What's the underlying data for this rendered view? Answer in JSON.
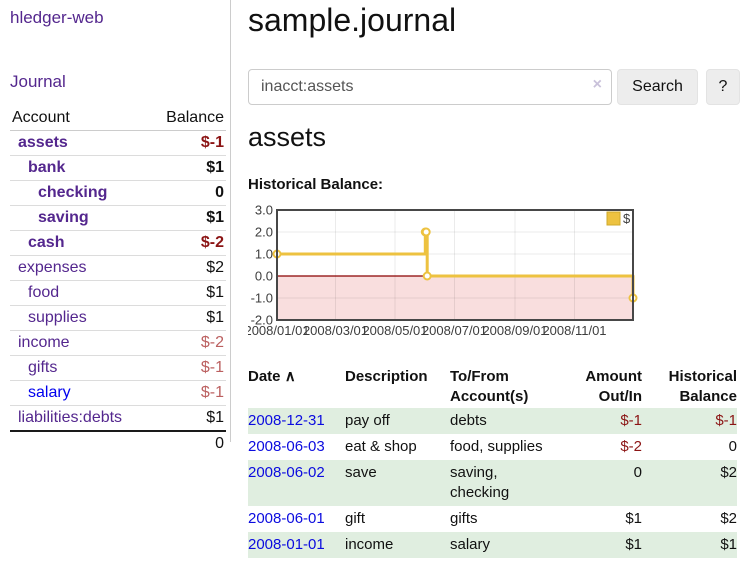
{
  "app": {
    "title": "hledger-web"
  },
  "sidebar": {
    "nav": {
      "journal": "Journal"
    },
    "accounts_table": {
      "headers": {
        "account": "Account",
        "balance": "Balance"
      },
      "rows": [
        {
          "name": "assets",
          "balance": "$-1",
          "depth": 1,
          "bold": true,
          "balance_tone": "negative-strong"
        },
        {
          "name": "bank",
          "balance": "$1",
          "depth": 2,
          "bold": true,
          "balance_tone": "normal"
        },
        {
          "name": "checking",
          "balance": "0",
          "depth": 3,
          "bold": true,
          "balance_tone": "normal"
        },
        {
          "name": "saving",
          "balance": "$1",
          "depth": 3,
          "bold": true,
          "balance_tone": "normal"
        },
        {
          "name": "cash",
          "balance": "$-2",
          "depth": 2,
          "bold": true,
          "balance_tone": "negative-strong"
        },
        {
          "name": "expenses",
          "balance": "$2",
          "depth": 1,
          "bold": false,
          "balance_tone": "normal"
        },
        {
          "name": "food",
          "balance": "$1",
          "depth": 2,
          "bold": false,
          "balance_tone": "normal"
        },
        {
          "name": "supplies",
          "balance": "$1",
          "depth": 2,
          "bold": false,
          "balance_tone": "normal"
        },
        {
          "name": "income",
          "balance": "$-2",
          "depth": 1,
          "bold": false,
          "balance_tone": "negative-soft"
        },
        {
          "name": "gifts",
          "balance": "$-1",
          "depth": 2,
          "bold": false,
          "balance_tone": "negative-soft"
        },
        {
          "name": "salary",
          "balance": "$-1",
          "depth": 2,
          "bold": false,
          "balance_tone": "negative-soft",
          "link_tone": "blue"
        },
        {
          "name": "liabilities:debts",
          "balance": "$1",
          "depth": 1,
          "bold": false,
          "balance_tone": "normal"
        }
      ],
      "total": "0"
    }
  },
  "header": {
    "title": "sample.journal"
  },
  "search": {
    "value": "inacct:assets",
    "clear_icon": "×",
    "search_button": "Search",
    "help_button": "?"
  },
  "account_page": {
    "title": "assets",
    "chart_label": "Historical Balance:"
  },
  "chart_data": {
    "type": "line",
    "style": "step",
    "title": "Historical Balance:",
    "series": [
      {
        "name": "$",
        "color": "#edc240",
        "points": [
          [
            "2008-01-01",
            1
          ],
          [
            "2008-06-01",
            2
          ],
          [
            "2008-06-02",
            2
          ],
          [
            "2008-06-03",
            0
          ],
          [
            "2008-12-31",
            -1
          ]
        ]
      }
    ],
    "xlim": [
      "2008-01-01",
      "2008-12-31"
    ],
    "ylim": [
      -2,
      3
    ],
    "yticks": [
      "3.0",
      "2.0",
      "1.0",
      "0.0",
      "-1.0",
      "-2.0"
    ],
    "xticks": [
      "2008/01/01",
      "2008/03/01",
      "2008/05/01",
      "2008/07/01",
      "2008/09/01",
      "2008/11/01"
    ],
    "legend": {
      "position": "top-right",
      "entries": [
        "$"
      ]
    },
    "grid": true,
    "negative_region_color": "#f9dede",
    "zero_line_color": "#8b0000",
    "border_color": "#474747"
  },
  "register": {
    "headers": {
      "date": "Date",
      "sort_indicator": "∧",
      "description": "Description",
      "account": "To/From Account(s)",
      "amount": "Amount Out/In",
      "balance": "Historical Balance"
    },
    "rows": [
      {
        "date": "2008-12-31",
        "description": "pay off",
        "accounts": "debts",
        "amount": "$-1",
        "balance": "$-1"
      },
      {
        "date": "2008-06-03",
        "description": "eat & shop",
        "accounts": "food, supplies",
        "amount": "$-2",
        "balance": "0"
      },
      {
        "date": "2008-06-02",
        "description": "save",
        "accounts": "saving, checking",
        "amount": "0",
        "balance": "$2"
      },
      {
        "date": "2008-06-01",
        "description": "gift",
        "accounts": "gifts",
        "amount": "$1",
        "balance": "$2"
      },
      {
        "date": "2008-01-01",
        "description": "income",
        "accounts": "salary",
        "amount": "$1",
        "balance": "$1"
      }
    ]
  },
  "colors": {
    "link_purple": "#54278e",
    "link_blue": "#0000ee",
    "date_link_blue": "#0b0bdf",
    "negative_strong": "#8b1414",
    "negative_soft": "#bb5f5f",
    "row_green": "#e0eee0",
    "series_gold": "#edc240",
    "negative_region_pink": "#f9dede",
    "zero_line_darkred": "#8b0000"
  }
}
